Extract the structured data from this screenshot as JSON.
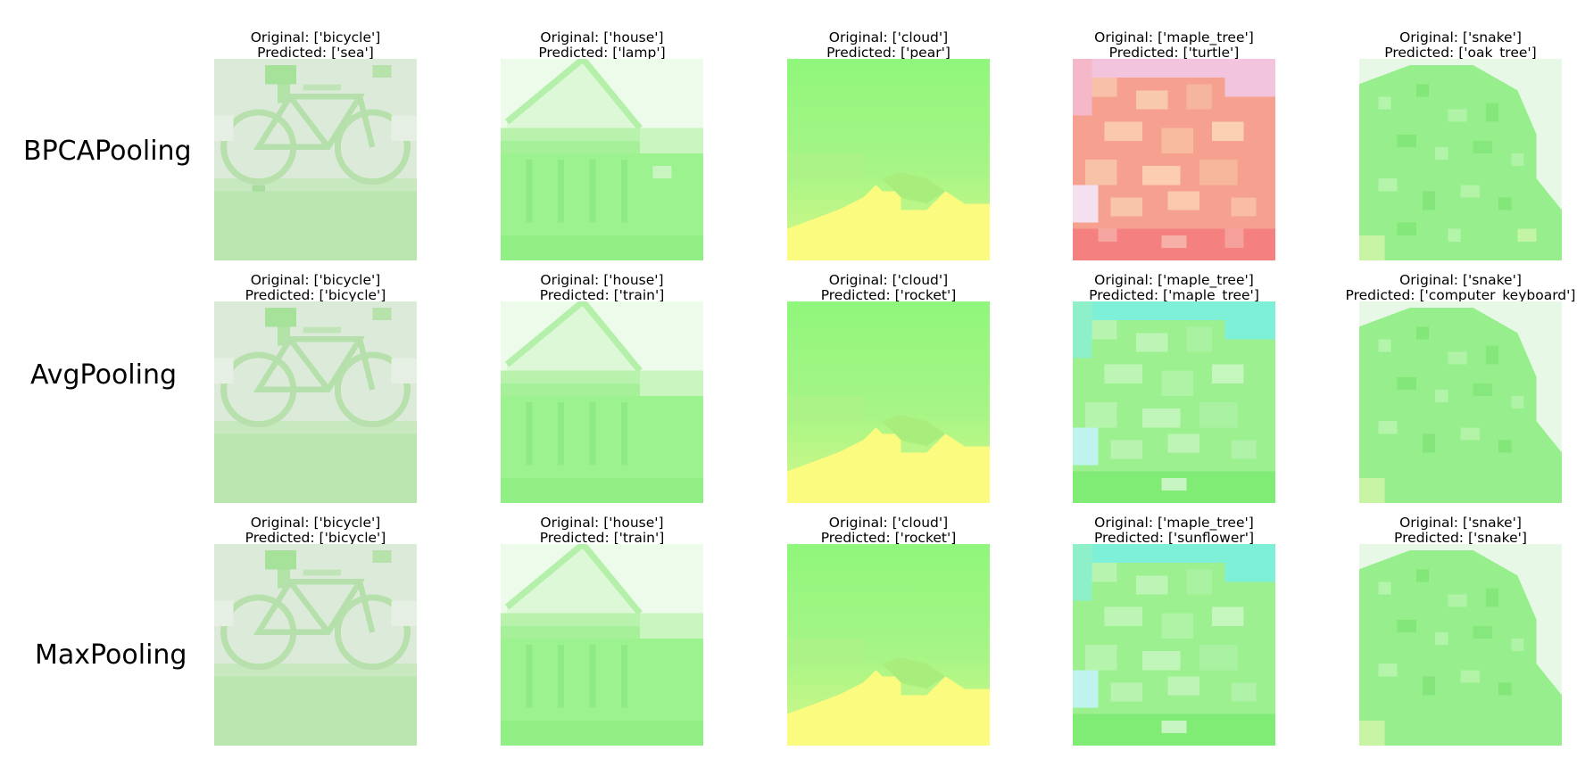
{
  "rows": [
    {
      "label": "BPCAPooling",
      "cells": [
        {
          "original": "Original: ['bicycle']",
          "predicted": "Predicted: ['sea']"
        },
        {
          "original": "Original: ['house']",
          "predicted": "Predicted: ['lamp']"
        },
        {
          "original": "Original: ['cloud']",
          "predicted": "Predicted: ['pear']"
        },
        {
          "original": "Original: ['maple_tree']",
          "predicted": "Predicted: ['turtle']"
        },
        {
          "original": "Original: ['snake']",
          "predicted": "Predicted: ['oak_tree']"
        }
      ]
    },
    {
      "label": "AvgPooling",
      "cells": [
        {
          "original": "Original: ['bicycle']",
          "predicted": "Predicted: ['bicycle']"
        },
        {
          "original": "Original: ['house']",
          "predicted": "Predicted: ['train']"
        },
        {
          "original": "Original: ['cloud']",
          "predicted": "Predicted: ['rocket']"
        },
        {
          "original": "Original: ['maple_tree']",
          "predicted": "Predicted: ['maple_tree']"
        },
        {
          "original": "Original: ['snake']",
          "predicted": "Predicted: ['computer_keyboard']"
        }
      ]
    },
    {
      "label": "MaxPooling",
      "cells": [
        {
          "original": "Original: ['bicycle']",
          "predicted": "Predicted: ['bicycle']"
        },
        {
          "original": "Original: ['house']",
          "predicted": "Predicted: ['train']"
        },
        {
          "original": "Original: ['cloud']",
          "predicted": "Predicted: ['rocket']"
        },
        {
          "original": "Original: ['maple_tree']",
          "predicted": "Predicted: ['sunflower']"
        },
        {
          "original": "Original: ['snake']",
          "predicted": "Predicted: ['snake']"
        }
      ]
    }
  ],
  "colors": {
    "bicycle_bg": "#dcebd9",
    "bicycle_ground": "#b9e6ae",
    "house_bg": "#ecfbea",
    "house_body": "#9cf28f",
    "cloud_green": "#8ef57a",
    "cloud_yellow": "#fbfb80",
    "maple_red": "#f6a090",
    "maple_pink": "#f2c4de",
    "maple_cyan": "#7ef0d8",
    "maple_green": "#9cf090",
    "snake_bg": "#e8f8e6",
    "snake_body": "#96ef8c"
  }
}
